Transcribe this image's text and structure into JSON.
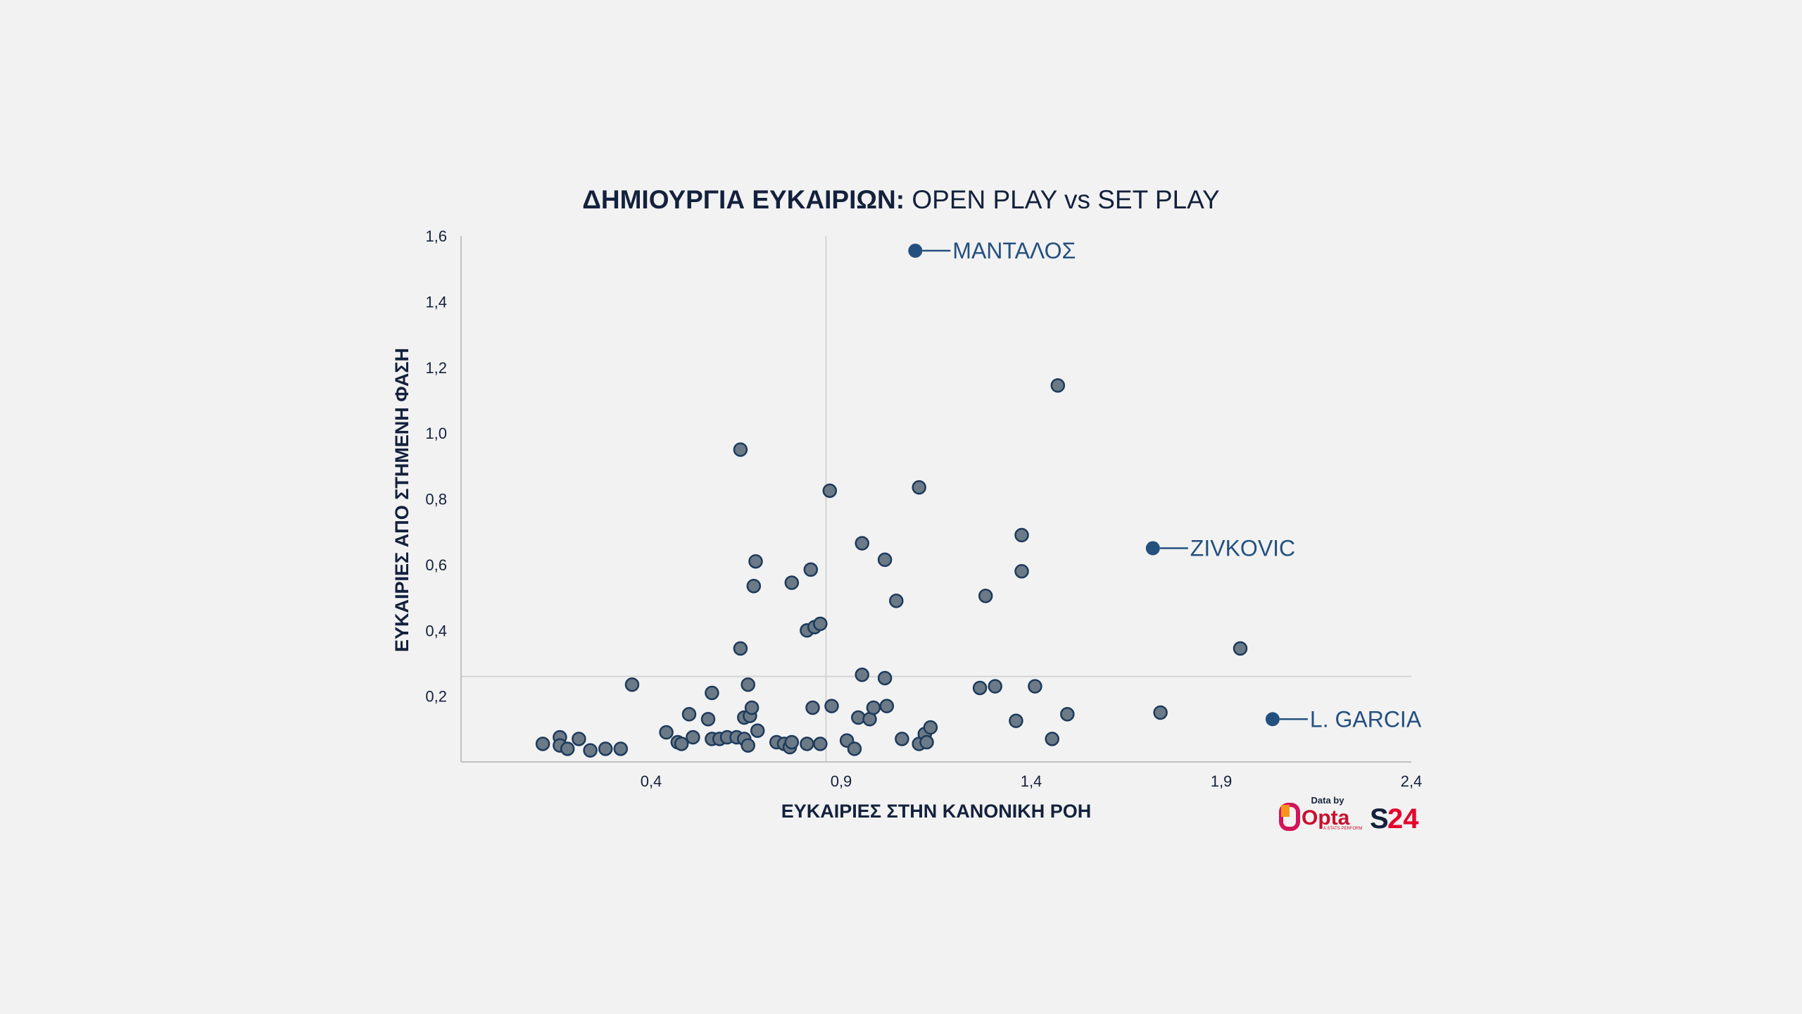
{
  "chart_data": {
    "type": "scatter",
    "title_bold": "ΔΗΜΙΟΥΡΓΙΑ ΕΥΚΑΙΡΙΩΝ:",
    "title_rest": " OPEN PLAY vs SET PLAY",
    "xlabel": "ΕΥΚΑΙΡΙΕΣ ΣΤΗΝ ΚΑΝΟΝΙΚΗ ΡΟΗ",
    "ylabel": "ΕΥΚΑΙΡΙΕΣ ΑΠΟ ΣΤΗΜΕΝΗ ΦΑΣΗ",
    "xlim": [
      -0.1,
      2.4
    ],
    "ylim": [
      0,
      1.6
    ],
    "xticks": [
      0.4,
      0.9,
      1.4,
      1.9,
      2.4
    ],
    "xtick_labels": [
      "0,4",
      "0,9",
      "1,4",
      "1,9",
      "2,4"
    ],
    "yticks": [
      0.2,
      0.4,
      0.6,
      0.8,
      1.0,
      1.2,
      1.4,
      1.6
    ],
    "ytick_labels": [
      "0,2",
      "0,4",
      "0,6",
      "0,8",
      "1,0",
      "1,2",
      "1,4",
      "1,6"
    ],
    "reference_lines": {
      "x": 0.86,
      "y": 0.26
    },
    "grid": false,
    "points": [
      [
        0.115,
        0.055
      ],
      [
        0.16,
        0.075
      ],
      [
        0.16,
        0.05
      ],
      [
        0.18,
        0.04
      ],
      [
        0.21,
        0.07
      ],
      [
        0.24,
        0.035
      ],
      [
        0.28,
        0.04
      ],
      [
        0.32,
        0.04
      ],
      [
        0.35,
        0.235
      ],
      [
        0.44,
        0.09
      ],
      [
        0.47,
        0.06
      ],
      [
        0.48,
        0.055
      ],
      [
        0.5,
        0.145
      ],
      [
        0.51,
        0.075
      ],
      [
        0.55,
        0.13
      ],
      [
        0.56,
        0.21
      ],
      [
        0.56,
        0.07
      ],
      [
        0.58,
        0.07
      ],
      [
        0.6,
        0.075
      ],
      [
        0.625,
        0.075
      ],
      [
        0.635,
        0.95
      ],
      [
        0.635,
        0.345
      ],
      [
        0.645,
        0.07
      ],
      [
        0.645,
        0.135
      ],
      [
        0.655,
        0.235
      ],
      [
        0.655,
        0.05
      ],
      [
        0.66,
        0.14
      ],
      [
        0.665,
        0.165
      ],
      [
        0.67,
        0.535
      ],
      [
        0.675,
        0.61
      ],
      [
        0.68,
        0.095
      ],
      [
        0.73,
        0.06
      ],
      [
        0.75,
        0.055
      ],
      [
        0.765,
        0.045
      ],
      [
        0.77,
        0.06
      ],
      [
        0.77,
        0.545
      ],
      [
        0.81,
        0.055
      ],
      [
        0.81,
        0.4
      ],
      [
        0.82,
        0.585
      ],
      [
        0.825,
        0.165
      ],
      [
        0.83,
        0.41
      ],
      [
        0.845,
        0.055
      ],
      [
        0.845,
        0.42
      ],
      [
        0.87,
        0.825
      ],
      [
        0.875,
        0.17
      ],
      [
        0.915,
        0.065
      ],
      [
        0.935,
        0.04
      ],
      [
        0.945,
        0.135
      ],
      [
        0.955,
        0.265
      ],
      [
        0.955,
        0.665
      ],
      [
        0.975,
        0.13
      ],
      [
        0.985,
        0.165
      ],
      [
        1.015,
        0.255
      ],
      [
        1.015,
        0.615
      ],
      [
        1.02,
        0.17
      ],
      [
        1.045,
        0.49
      ],
      [
        1.06,
        0.07
      ],
      [
        1.105,
        0.835
      ],
      [
        1.105,
        0.055
      ],
      [
        1.12,
        0.085
      ],
      [
        1.125,
        0.06
      ],
      [
        1.135,
        0.105
      ],
      [
        1.265,
        0.225
      ],
      [
        1.28,
        0.505
      ],
      [
        1.305,
        0.23
      ],
      [
        1.36,
        0.125
      ],
      [
        1.375,
        0.58
      ],
      [
        1.375,
        0.69
      ],
      [
        1.41,
        0.23
      ],
      [
        1.455,
        0.07
      ],
      [
        1.47,
        1.145
      ],
      [
        1.495,
        0.145
      ],
      [
        1.74,
        0.15
      ],
      [
        1.95,
        0.345
      ]
    ],
    "highlighted": [
      {
        "name": "ΜΑΝΤΑΛΟΣ",
        "x": 1.095,
        "y": 1.555
      },
      {
        "name": "ZIVKOVIC",
        "x": 1.72,
        "y": 0.65
      },
      {
        "name": "L. GARCIA",
        "x": 2.035,
        "y": 0.13
      }
    ]
  },
  "credits": {
    "data_by": "Data by",
    "opta": "Opta",
    "opta_sub": "A STATS PERFORM",
    "s24_s": "S",
    "s24_num": "24"
  },
  "colors": {
    "background": "#f2f2f2",
    "point_fill": "#6b7a86",
    "point_stroke": "#1d3a5c",
    "highlight": "#24507f",
    "text": "#14213d"
  }
}
